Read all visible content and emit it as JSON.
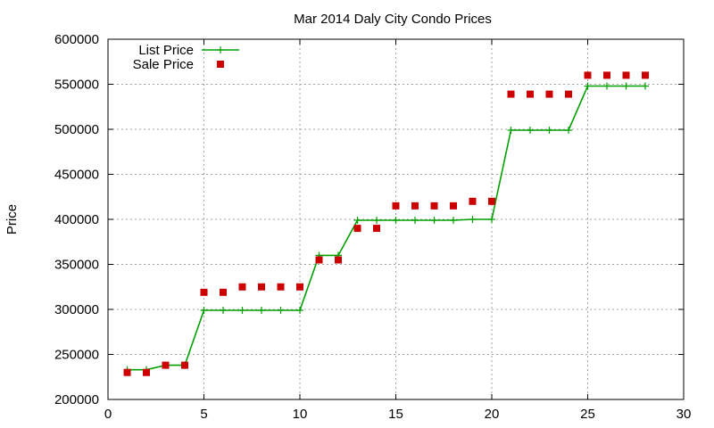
{
  "colors": {
    "list_price": "#00a000",
    "sale_price": "#cc0000"
  },
  "chart_data": {
    "type": "line",
    "title": "Mar 2014 Daly City Condo Prices",
    "xlabel": "",
    "ylabel": "Price",
    "xlim": [
      0,
      30
    ],
    "ylim": [
      200000,
      600000
    ],
    "x_ticks": [
      0,
      5,
      10,
      15,
      20,
      25,
      30
    ],
    "y_ticks": [
      200000,
      250000,
      300000,
      350000,
      400000,
      450000,
      500000,
      550000,
      600000
    ],
    "grid": true,
    "legend_position": "top-left",
    "series": [
      {
        "name": "List Price",
        "style": "line-with-plus-markers",
        "color": "#00a000",
        "x": [
          1,
          2,
          3,
          4,
          5,
          6,
          7,
          8,
          9,
          10,
          11,
          12,
          13,
          14,
          15,
          16,
          17,
          18,
          19,
          20,
          21,
          22,
          23,
          24,
          25,
          26,
          27,
          28
        ],
        "y": [
          233000,
          233000,
          238000,
          238000,
          299000,
          299000,
          299000,
          299000,
          299000,
          299000,
          360000,
          360000,
          399000,
          399000,
          399000,
          399000,
          399000,
          399000,
          400000,
          400000,
          499000,
          499000,
          499000,
          499000,
          548000,
          548000,
          548000,
          548000
        ]
      },
      {
        "name": "Sale Price",
        "style": "square-markers",
        "color": "#cc0000",
        "x": [
          1,
          2,
          3,
          4,
          5,
          6,
          7,
          8,
          9,
          10,
          11,
          12,
          13,
          14,
          15,
          16,
          17,
          18,
          19,
          20,
          21,
          22,
          23,
          24,
          25,
          26,
          27,
          28
        ],
        "y": [
          230000,
          230000,
          238000,
          238000,
          319000,
          319000,
          325000,
          325000,
          325000,
          325000,
          355000,
          355000,
          390000,
          390000,
          415000,
          415000,
          415000,
          415000,
          420000,
          420000,
          539000,
          539000,
          539000,
          539000,
          560000,
          560000,
          560000,
          560000
        ]
      }
    ]
  }
}
